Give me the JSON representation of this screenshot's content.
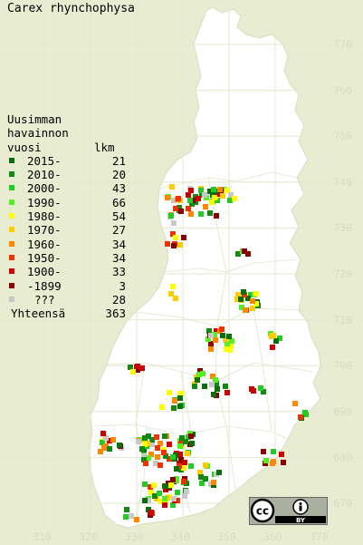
{
  "title": "Carex rhynchophysa",
  "legend": {
    "header_line1": "Uusimman",
    "header_line2": "havainnon",
    "header_col1": "vuosi",
    "header_col2": "lkm",
    "rows": [
      {
        "label": "2015-",
        "count": "21",
        "color": "#0a6e0a"
      },
      {
        "label": "2010-",
        "count": "20",
        "color": "#118a11"
      },
      {
        "label": "2000-",
        "count": "43",
        "color": "#22cc22"
      },
      {
        "label": "1990-",
        "count": "66",
        "color": "#55ee22"
      },
      {
        "label": "1980-",
        "count": "54",
        "color": "#ffff00"
      },
      {
        "label": "1970-",
        "count": "27",
        "color": "#ffcc00"
      },
      {
        "label": "1960-",
        "count": "34",
        "color": "#ff8800"
      },
      {
        "label": "1950-",
        "count": "34",
        "color": "#ee3300"
      },
      {
        "label": "1900-",
        "count": "33",
        "color": "#cc0000"
      },
      {
        "label": "-1899",
        "count": "3",
        "color": "#880000"
      },
      {
        "label": "???",
        "count": "28",
        "color": "#c8c8c8"
      }
    ],
    "total_label": "Yhteensä",
    "total_count": "363"
  },
  "y_axis_labels": [
    "770",
    "760",
    "750",
    "740",
    "730",
    "720",
    "710",
    "700",
    "690",
    "680",
    "670"
  ],
  "x_axis_labels": [
    "310",
    "320",
    "330",
    "340",
    "350",
    "360",
    "370"
  ],
  "license_badge": {
    "cc": "cc",
    "by": "BY"
  },
  "colors": {
    "background": "#e8ecd0",
    "land": "#ffffff",
    "border": "#d8dcc0"
  }
}
